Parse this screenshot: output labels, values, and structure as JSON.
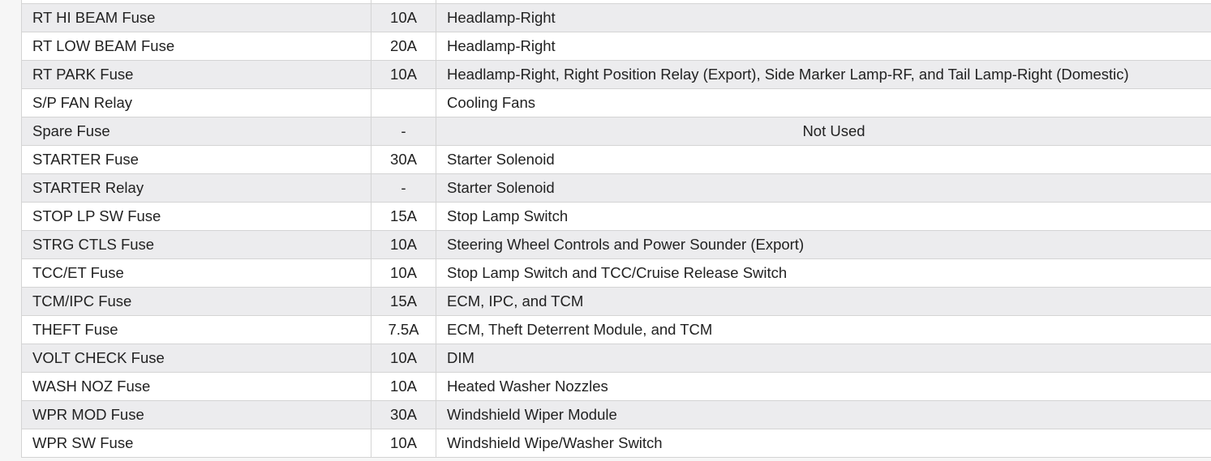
{
  "table": {
    "rows": [
      {
        "name": "RT HI BEAM Fuse",
        "rating": "10A",
        "circuit": "Headlamp-Right"
      },
      {
        "name": "RT LOW BEAM Fuse",
        "rating": "20A",
        "circuit": "Headlamp-Right"
      },
      {
        "name": "RT PARK Fuse",
        "rating": "10A",
        "circuit": "Headlamp-Right, Right Position Relay (Export), Side Marker Lamp-RF, and Tail Lamp-Right (Domestic)"
      },
      {
        "name": "S/P FAN Relay",
        "rating": "",
        "circuit": "Cooling Fans"
      },
      {
        "name": "Spare Fuse",
        "rating": "-",
        "circuit": "Not Used"
      },
      {
        "name": "STARTER Fuse",
        "rating": "30A",
        "circuit": "Starter Solenoid"
      },
      {
        "name": "STARTER Relay",
        "rating": "-",
        "circuit": "Starter Solenoid"
      },
      {
        "name": "STOP LP SW Fuse",
        "rating": "15A",
        "circuit": "Stop Lamp Switch"
      },
      {
        "name": "STRG CTLS Fuse",
        "rating": "10A",
        "circuit": "Steering Wheel Controls and Power Sounder (Export)"
      },
      {
        "name": "TCC/ET Fuse",
        "rating": "10A",
        "circuit": "Stop Lamp Switch and TCC/Cruise Release Switch"
      },
      {
        "name": "TCM/IPC Fuse",
        "rating": "15A",
        "circuit": "ECM, IPC, and TCM"
      },
      {
        "name": "THEFT Fuse",
        "rating": "7.5A",
        "circuit": "ECM, Theft Deterrent Module, and TCM"
      },
      {
        "name": "VOLT CHECK Fuse",
        "rating": "10A",
        "circuit": "DIM"
      },
      {
        "name": "WASH NOZ Fuse",
        "rating": "10A",
        "circuit": "Heated Washer Nozzles"
      },
      {
        "name": "WPR MOD Fuse",
        "rating": "30A",
        "circuit": "Windshield Wiper Module"
      },
      {
        "name": "WPR SW Fuse",
        "rating": "10A",
        "circuit": "Windshield Wipe/Washer Switch"
      }
    ],
    "highlight_color": "#ffff00"
  }
}
